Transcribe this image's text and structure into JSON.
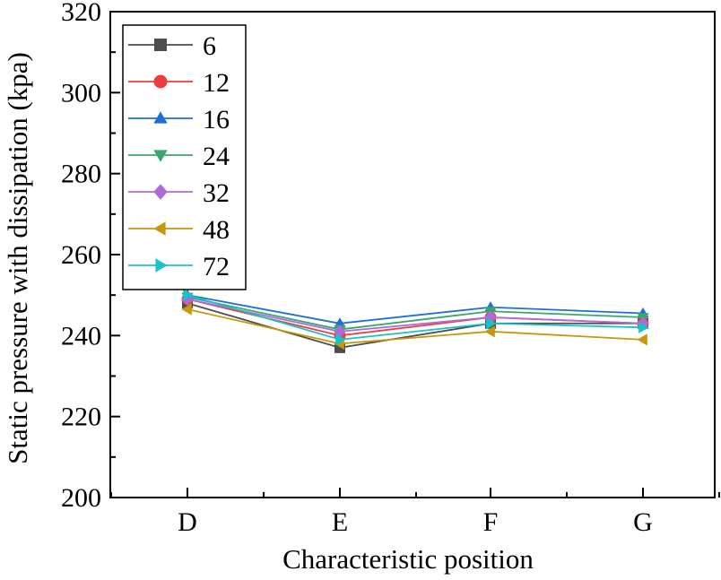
{
  "chart_data": {
    "type": "line",
    "title": "",
    "xlabel": "Characteristic position",
    "ylabel": "Static pressure with dissipation (kpa)",
    "categories": [
      "D",
      "E",
      "F",
      "G"
    ],
    "ylim": [
      200,
      320
    ],
    "yticks": [
      200,
      220,
      240,
      260,
      280,
      300,
      320
    ],
    "grid": false,
    "legend_position": "top-left",
    "series": [
      {
        "name": "6",
        "marker": "square",
        "color": "#4d4d4d",
        "values": [
          248,
          237,
          243,
          243
        ]
      },
      {
        "name": "12",
        "marker": "circle",
        "color": "#f03c3c",
        "values": [
          249,
          240,
          244.5,
          243
        ]
      },
      {
        "name": "16",
        "marker": "triangle-up",
        "color": "#1f6fd6",
        "values": [
          250,
          243,
          247,
          245.5
        ]
      },
      {
        "name": "24",
        "marker": "triangle-down",
        "color": "#3aa66a",
        "values": [
          249.5,
          241.5,
          246,
          244.5
        ]
      },
      {
        "name": "32",
        "marker": "diamond",
        "color": "#b06ad8",
        "values": [
          249,
          241,
          244.5,
          243
        ]
      },
      {
        "name": "48",
        "marker": "triangle-left",
        "color": "#c9960c",
        "values": [
          246.5,
          238,
          241,
          239
        ]
      },
      {
        "name": "72",
        "marker": "triangle-right",
        "color": "#17c3c9",
        "values": [
          250,
          239,
          243,
          242
        ]
      }
    ]
  }
}
